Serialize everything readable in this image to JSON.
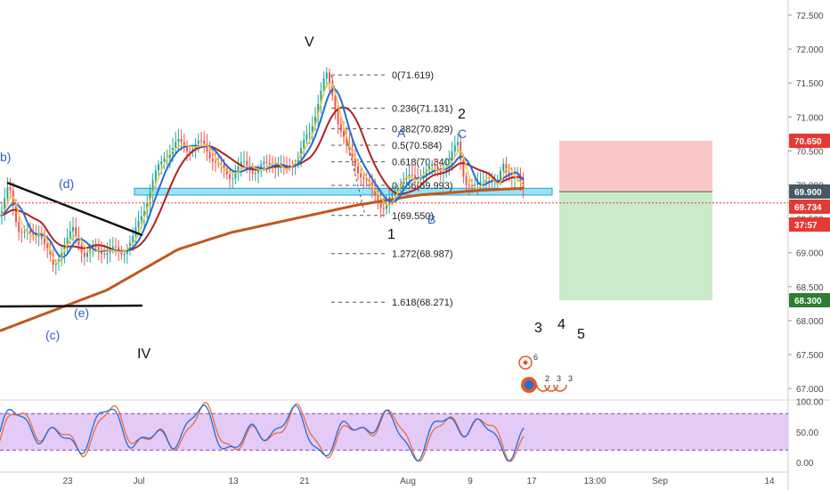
{
  "chart_data": {
    "type": "candlestick",
    "price_axis": {
      "range": [
        66.9,
        72.7
      ],
      "ticks": [
        "72.500",
        "72.000",
        "71.500",
        "71.000",
        "70.500",
        "70.000",
        "69.500",
        "69.000",
        "68.500",
        "68.000",
        "67.500",
        "67.000"
      ],
      "tick_values": [
        72.5,
        72.0,
        71.5,
        71.0,
        70.5,
        70.0,
        69.5,
        69.0,
        68.5,
        68.0,
        67.5,
        67.0
      ]
    },
    "time_axis": {
      "labels": [
        "23",
        "Jul",
        "13",
        "21",
        "Aug",
        "9",
        "17",
        "13:00",
        "Sep",
        "14"
      ]
    },
    "price_badges": [
      {
        "label": "70.650",
        "value": 70.65,
        "color": "#e53935"
      },
      {
        "label": "69.900",
        "value": 69.9,
        "color": "#455a64"
      },
      {
        "label": "69.734",
        "value": 69.734,
        "color": "#e53935"
      },
      {
        "label": "37:57",
        "value": 69.55,
        "color": "#e53935"
      },
      {
        "label": "68.300",
        "value": 68.3,
        "color": "#2e7d32"
      }
    ],
    "fib_levels": [
      {
        "label": "0(71.619)",
        "value": 71.619
      },
      {
        "label": "0.236(71.131)",
        "value": 71.131
      },
      {
        "label": "0.382(70.829)",
        "value": 70.829
      },
      {
        "label": "0.5(70.584)",
        "value": 70.584
      },
      {
        "label": "0.618(70.340)",
        "value": 70.34
      },
      {
        "label": "0.786(69.993)",
        "value": 69.993
      },
      {
        "label": "1(69.550)",
        "value": 69.55
      },
      {
        "label": "1.272(68.987)",
        "value": 68.987
      },
      {
        "label": "1.618(68.271)",
        "value": 68.271
      }
    ],
    "position": {
      "entry": 69.9,
      "stop": 70.65,
      "target": 68.3
    },
    "current_price": 69.734,
    "wave_labels": [
      {
        "text": "V",
        "style": "black"
      },
      {
        "text": "IV",
        "style": "black"
      },
      {
        "text": "1",
        "style": "black"
      },
      {
        "text": "2",
        "style": "black"
      },
      {
        "text": "3",
        "style": "black"
      },
      {
        "text": "4",
        "style": "black"
      },
      {
        "text": "5",
        "style": "black"
      },
      {
        "text": "A",
        "style": "blue"
      },
      {
        "text": "B",
        "style": "blue"
      },
      {
        "text": "C",
        "style": "blue"
      },
      {
        "text": "b)",
        "style": "blue"
      },
      {
        "text": "(d)",
        "style": "blue"
      },
      {
        "text": "(e)",
        "style": "blue"
      },
      {
        "text": "(c)",
        "style": "blue"
      }
    ],
    "projection_markers": [
      "6",
      "2",
      "3",
      "3"
    ],
    "oscillator": {
      "range": [
        0,
        100
      ],
      "ticks": [
        "100.00",
        "50.00",
        "0.00"
      ],
      "tick_values": [
        100,
        50,
        0
      ],
      "band": [
        20,
        80
      ]
    },
    "series_colors": {
      "candle_up": "#26a69a",
      "candle_down": "#ef5350",
      "ma_long": "#c0581d",
      "ma_mid": "#b22222",
      "ma_fast": "#1e6fd9",
      "ma_fastest": "#f2c744",
      "oscillator_k": "#1e6fd9",
      "oscillator_d": "#ef6c3a",
      "support_zone": "#7fdcf5",
      "stop_zone": "#f8b4b4",
      "target_zone": "#b9e3b9"
    }
  }
}
